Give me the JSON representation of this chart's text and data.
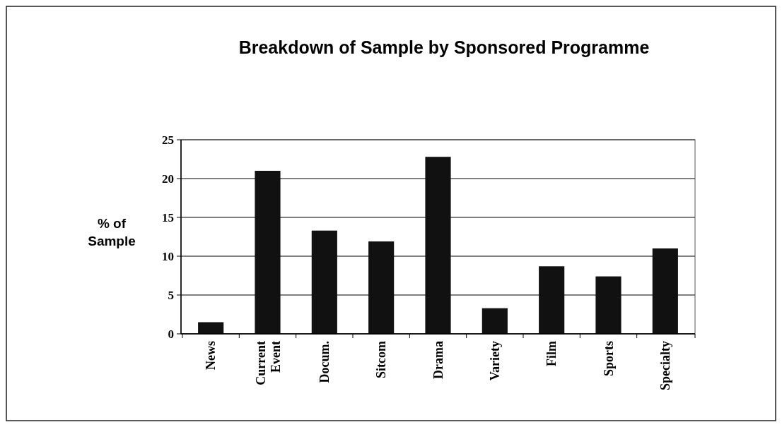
{
  "chart_data": {
    "type": "bar",
    "title": "Breakdown of Sample by Sponsored Programme",
    "ylabel": "% of Sample",
    "categories": [
      "News",
      "Current Event",
      "Docum.",
      "Sitcom",
      "Drama",
      "Variety",
      "Film",
      "Sports",
      "Specialty"
    ],
    "values": [
      1.5,
      21.0,
      13.3,
      11.9,
      22.8,
      3.3,
      8.7,
      7.4,
      11.0
    ],
    "color": "#111111",
    "ylim": [
      0,
      25
    ],
    "yticks": [
      0,
      5,
      10,
      15,
      20,
      25
    ],
    "grid": "y"
  }
}
